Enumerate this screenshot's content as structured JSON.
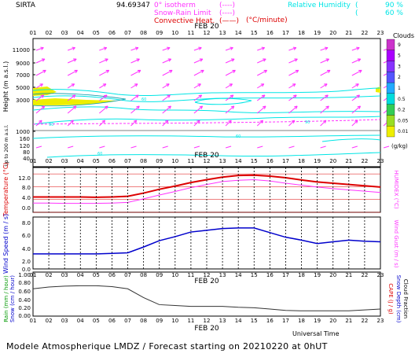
{
  "header": {
    "site": "SIRTA",
    "coords": "94.69347",
    "legend_isotherm": "0° isotherm",
    "legend_snow": "Snow-Rain Limit",
    "legend_convective": "Convective Heat.",
    "legend_unit": "(°C/minute)",
    "rh_label": "Relative Humidity",
    "rh_90": "90 %",
    "rh_60": "60 %",
    "rh_90_bracket": "(",
    "rh_60_bracket": "(",
    "isotherm_bracket": "(----)",
    "snow_bracket": "(----)",
    "convective_bracket": "(——)"
  },
  "hours": [
    "01",
    "02",
    "03",
    "04",
    "05",
    "06",
    "07",
    "08",
    "09",
    "10",
    "11",
    "12",
    "13",
    "14",
    "15",
    "16",
    "17",
    "18",
    "19",
    "20",
    "21",
    "22",
    "23"
  ],
  "date_label": "FEB 20",
  "panel1": {
    "ylabel": "Height (m a.s.l.)",
    "ylabel2": "Up to 200 m a.s.l.",
    "yticks": [
      "11000",
      "9000",
      "7000",
      "5000",
      "3000",
      "1000",
      "160",
      "120",
      "80",
      "40"
    ],
    "cloud_label": "Clouds",
    "cloud_unit": "(g/kg)",
    "cloud_ticks": [
      "9",
      "5",
      "3",
      "2",
      "1",
      "0.5",
      "0.2",
      "0.05",
      "0.01"
    ],
    "cloud_colors": [
      "#cc33cc",
      "#aa00ff",
      "#8833ff",
      "#5555ff",
      "#22aaff",
      "#00dddd",
      "#33cc55",
      "#99dd22",
      "#eeee00"
    ]
  },
  "panel2": {
    "ylabel": "Temperature (°C)",
    "ylabel_right": "HUMIDEX (°C)",
    "yticks": [
      "12.0",
      "8.0",
      "4.0",
      "0.0"
    ]
  },
  "panel3": {
    "ylabel": "Wind Speed (m / s)",
    "ylabel_right": "Wind Gust (m / s)",
    "yticks": [
      "8.0",
      "6.0",
      "4.0",
      "2.0",
      "0.0"
    ]
  },
  "panel4": {
    "ylabel_rain": "Rain (mm / hour)",
    "ylabel_snow": "Snow (cm / hour)",
    "ylabel_cape": "CAPE (J / g)",
    "ylabel_sd": "Snow Depth (cm)",
    "ylabel_cf": "Cloud Fraction",
    "yticks": [
      "1.00",
      "0.80",
      "0.60",
      "0.40",
      "0.20",
      "0.00"
    ],
    "xlabel": "Universal Time"
  },
  "footer": "Modele Atmospherique LMDZ / Forecast starting on 20210220 at 0hUT",
  "colors": {
    "magenta": "#ff33ff",
    "cyan": "#00e5e5",
    "red": "#dd0000",
    "blue": "#0000cc",
    "yellow": "#eeee00",
    "gray": "#333333"
  },
  "chart_data": [
    {
      "type": "line",
      "title": "Temperature / Humidex",
      "x": [
        "01",
        "02",
        "03",
        "04",
        "05",
        "06",
        "07",
        "08",
        "09",
        "10",
        "11",
        "12",
        "13",
        "14",
        "15",
        "16",
        "17",
        "18",
        "19",
        "20",
        "21",
        "22",
        "23"
      ],
      "ylabel": "Temperature (°C)",
      "ylim": [
        0,
        14
      ],
      "series": [
        {
          "name": "Temperature",
          "color": "#dd0000",
          "values": [
            4.8,
            4.8,
            4.8,
            4.8,
            4.7,
            4.8,
            5.0,
            6.0,
            7.2,
            8.2,
            9.3,
            10.2,
            11.0,
            11.5,
            11.6,
            11.3,
            10.8,
            10.1,
            9.5,
            9.1,
            8.7,
            8.3,
            7.9
          ]
        },
        {
          "name": "Humidex",
          "color": "#ff33ff",
          "values": [
            2.9,
            2.9,
            2.8,
            2.8,
            2.8,
            2.9,
            3.1,
            4.2,
            5.4,
            6.5,
            7.7,
            8.7,
            9.6,
            10.0,
            10.2,
            9.8,
            9.1,
            8.5,
            7.9,
            7.4,
            7.0,
            6.6,
            6.2
          ]
        }
      ]
    },
    {
      "type": "line",
      "title": "Wind Speed / Wind Gust",
      "x": [
        "01",
        "02",
        "03",
        "04",
        "05",
        "06",
        "07",
        "08",
        "09",
        "10",
        "11",
        "12",
        "13",
        "14",
        "15",
        "16",
        "17",
        "18",
        "19",
        "20",
        "21",
        "22",
        "23"
      ],
      "ylabel": "Wind Speed (m / s)",
      "ylim": [
        0,
        9
      ],
      "series": [
        {
          "name": "Wind Speed",
          "color": "#0000cc",
          "values": [
            2.6,
            2.6,
            2.6,
            2.6,
            2.6,
            2.7,
            2.8,
            3.8,
            4.9,
            5.6,
            6.4,
            6.7,
            7.0,
            7.1,
            7.1,
            6.3,
            5.5,
            5.0,
            4.4,
            4.7,
            5.0,
            4.8,
            4.7
          ]
        }
      ]
    },
    {
      "type": "line",
      "title": "Cloud Fraction",
      "x": [
        "01",
        "02",
        "03",
        "04",
        "05",
        "06",
        "07",
        "08",
        "09",
        "10",
        "11",
        "12",
        "13",
        "14",
        "15",
        "16",
        "17",
        "18",
        "19",
        "20",
        "21",
        "22",
        "23"
      ],
      "ylabel": "Cloud Fraction",
      "ylim": [
        0,
        1
      ],
      "series": [
        {
          "name": "Cloud Fraction",
          "color": "#333333",
          "values": [
            0.62,
            0.66,
            0.68,
            0.69,
            0.69,
            0.67,
            0.62,
            0.42,
            0.26,
            0.24,
            0.22,
            0.22,
            0.22,
            0.2,
            0.19,
            0.16,
            0.13,
            0.12,
            0.12,
            0.12,
            0.12,
            0.14,
            0.16
          ]
        }
      ]
    }
  ]
}
